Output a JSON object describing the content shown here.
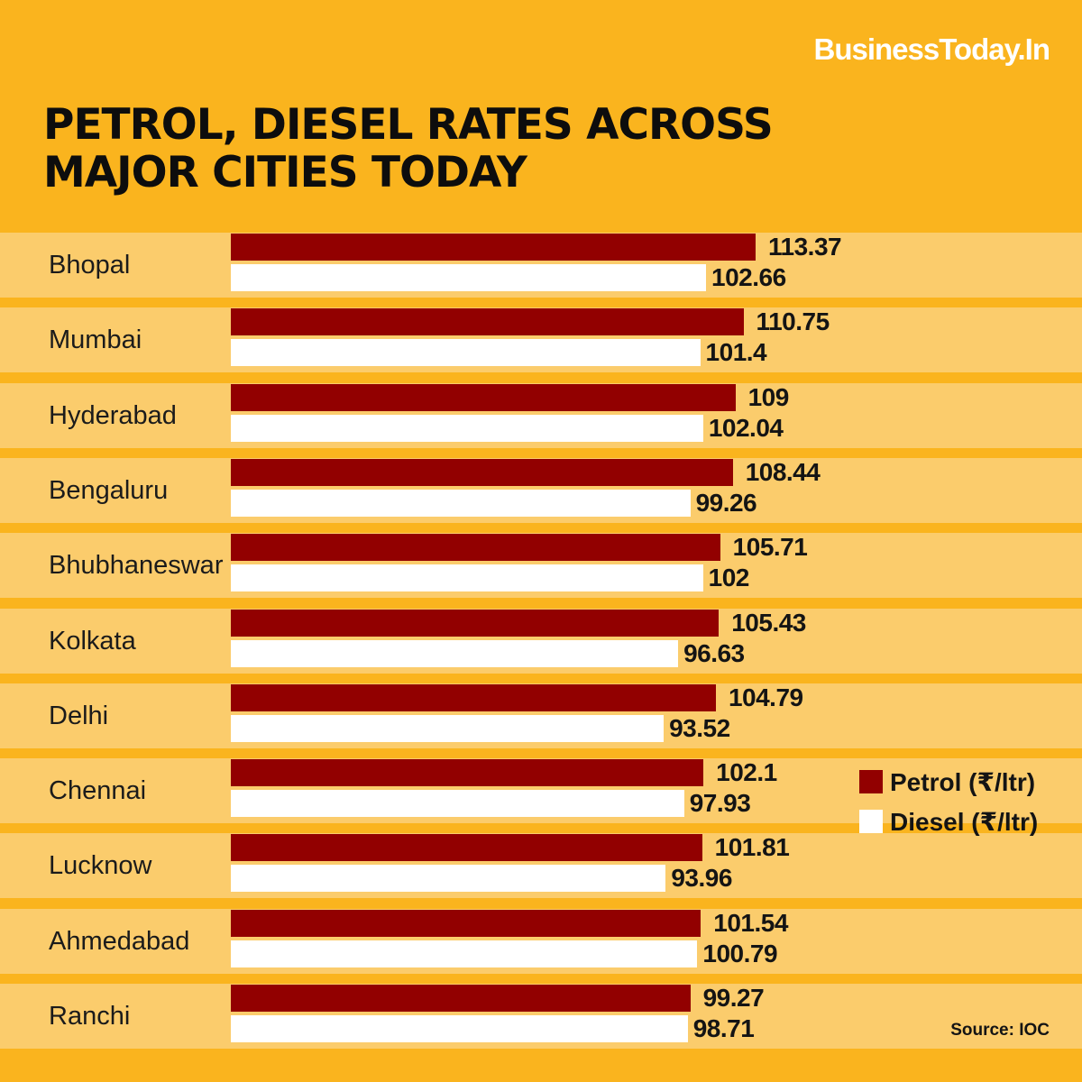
{
  "brand": "BusinessToday.In",
  "title_lines": [
    "PETROL, DIESEL RATES ACROSS",
    "MAJOR CITIES TODAY"
  ],
  "source": "Source: IOC",
  "colors": {
    "background": "#fab41e",
    "band": "#fbcc6c",
    "petrol": "#920000",
    "diesel": "#ffffff"
  },
  "chart_data": {
    "type": "bar",
    "orientation": "horizontal",
    "title": "PETROL, DIESEL RATES ACROSS MAJOR CITIES TODAY",
    "categories": [
      "Bhopal",
      "Mumbai",
      "Hyderabad",
      "Bengaluru",
      "Bhubhaneswar",
      "Kolkata",
      "Delhi",
      "Chennai",
      "Lucknow",
      "Ahmedabad",
      "Ranchi"
    ],
    "series": [
      {
        "name": "Petrol (₹/ltr)",
        "values": [
          113.37,
          110.75,
          109,
          108.44,
          105.71,
          105.43,
          104.79,
          102.1,
          101.81,
          101.54,
          99.27
        ]
      },
      {
        "name": "Diesel (₹/ltr)",
        "values": [
          102.66,
          101.4,
          102.04,
          99.26,
          102,
          96.63,
          93.52,
          97.93,
          93.96,
          100.79,
          98.71
        ]
      }
    ],
    "value_labels": {
      "petrol": [
        "113.37",
        "110.75",
        "109",
        "108.44",
        "105.71",
        "105.43",
        "104.79",
        "102.1",
        "101.81",
        "101.54",
        "99.27"
      ],
      "diesel": [
        "102.66",
        "101.4",
        "102.04",
        "99.26",
        "102",
        "96.63",
        "93.52",
        "97.93",
        "93.96",
        "100.79",
        "98.71"
      ]
    },
    "grid": false,
    "legend_position": "right"
  }
}
